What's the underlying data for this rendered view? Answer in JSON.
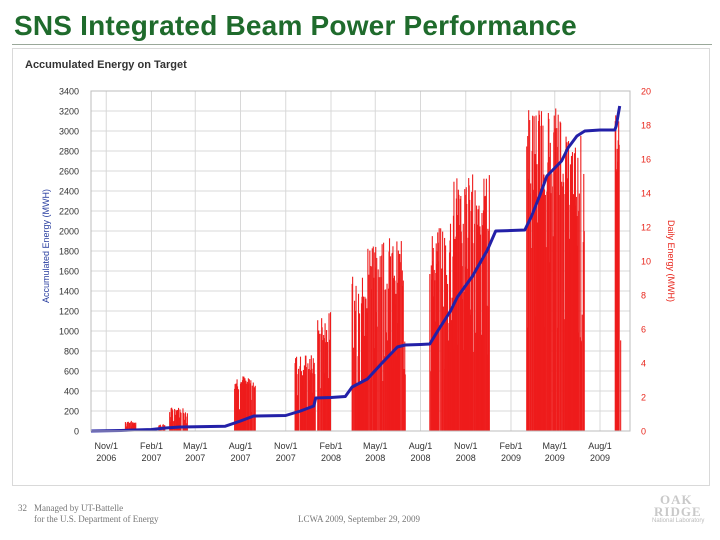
{
  "slide": {
    "title": "SNS Integrated Beam Power Performance",
    "footer_number": "32",
    "footer_line1": "Managed by UT-Battelle",
    "footer_line2": "for the U.S. Department of Energy",
    "footer_center": "LCWA 2009, September 29, 2009",
    "logo_line1": "OAK",
    "logo_line2": "RIDGE",
    "logo_line3": "National Laboratory"
  },
  "colors": {
    "title": "#1f6b2c",
    "left_axis": "#2a3fa0",
    "right_axis": "#e8261c",
    "cumulative_line": "#2320a8",
    "daily_bars": "#ee1c1c",
    "grid": "#d8d8d8"
  },
  "chart_data": {
    "type": "bar",
    "title": "Accumulated Energy on Target",
    "ylabel": "Accumulated Energy (MWH)",
    "y2label": "Daily Energy (MWH)",
    "ylim": [
      0,
      3400
    ],
    "y2lim": [
      0,
      20
    ],
    "yticks": [
      0,
      200,
      400,
      600,
      800,
      1000,
      1200,
      1400,
      1600,
      1800,
      2000,
      2200,
      2400,
      2600,
      2800,
      3000,
      3200,
      3400
    ],
    "y2ticks": [
      0,
      2,
      4,
      6,
      8,
      10,
      12,
      14,
      16,
      18,
      20
    ],
    "grid": true,
    "xaxis": {
      "start": "2006-10-01",
      "end": "2009-10-01",
      "ticks": [
        {
          "date": "2006-11-01",
          "label": "Nov/1",
          "year": "2006"
        },
        {
          "date": "2007-02-01",
          "label": "Feb/1",
          "year": "2007"
        },
        {
          "date": "2007-05-01",
          "label": "May/1",
          "year": "2007"
        },
        {
          "date": "2007-08-01",
          "label": "Aug/1",
          "year": "2007"
        },
        {
          "date": "2007-11-01",
          "label": "Nov/1",
          "year": "2007"
        },
        {
          "date": "2008-02-01",
          "label": "Feb/1",
          "year": "2008"
        },
        {
          "date": "2008-05-01",
          "label": "May/1",
          "year": "2008"
        },
        {
          "date": "2008-08-01",
          "label": "Aug/1",
          "year": "2008"
        },
        {
          "date": "2008-11-01",
          "label": "Nov/1",
          "year": "2008"
        },
        {
          "date": "2009-02-01",
          "label": "Feb/1",
          "year": "2009"
        },
        {
          "date": "2009-05-01",
          "label": "May/1",
          "year": "2009"
        },
        {
          "date": "2009-08-01",
          "label": "Aug/1",
          "year": "2009"
        }
      ]
    },
    "cumulative_series": {
      "axis": "left",
      "points": [
        [
          "2006-10-01",
          0
        ],
        [
          "2006-12-01",
          5
        ],
        [
          "2006-12-28",
          10
        ],
        [
          "2007-02-01",
          15
        ],
        [
          "2007-03-01",
          30
        ],
        [
          "2007-04-01",
          40
        ],
        [
          "2007-06-01",
          45
        ],
        [
          "2007-07-01",
          48
        ],
        [
          "2007-08-01",
          100
        ],
        [
          "2007-08-28",
          150
        ],
        [
          "2007-09-01",
          150
        ],
        [
          "2007-11-01",
          155
        ],
        [
          "2007-12-01",
          200
        ],
        [
          "2007-12-28",
          250
        ],
        [
          "2008-01-01",
          330
        ],
        [
          "2008-02-01",
          335
        ],
        [
          "2008-03-01",
          345
        ],
        [
          "2008-03-15",
          440
        ],
        [
          "2008-04-15",
          520
        ],
        [
          "2008-05-15",
          680
        ],
        [
          "2008-06-15",
          840
        ],
        [
          "2008-07-01",
          860
        ],
        [
          "2008-08-01",
          865
        ],
        [
          "2008-08-20",
          870
        ],
        [
          "2008-09-05",
          1000
        ],
        [
          "2008-10-01",
          1200
        ],
        [
          "2008-10-15",
          1340
        ],
        [
          "2008-11-15",
          1550
        ],
        [
          "2008-12-15",
          1810
        ],
        [
          "2009-01-01",
          2000
        ],
        [
          "2009-02-01",
          2005
        ],
        [
          "2009-03-01",
          2010
        ],
        [
          "2009-03-15",
          2150
        ],
        [
          "2009-04-01",
          2360
        ],
        [
          "2009-04-15",
          2550
        ],
        [
          "2009-05-15",
          2700
        ],
        [
          "2009-05-28",
          2830
        ],
        [
          "2009-06-15",
          2950
        ],
        [
          "2009-07-01",
          3000
        ],
        [
          "2009-08-01",
          3010
        ],
        [
          "2009-08-31",
          3010
        ],
        [
          "2009-09-03",
          3050
        ],
        [
          "2009-09-10",
          3250
        ]
      ]
    },
    "daily_energy_runs": {
      "axis": "right",
      "runs": [
        {
          "start": "2006-12-10",
          "end": "2006-12-31",
          "max": 0.6
        },
        {
          "start": "2007-02-15",
          "end": "2007-02-28",
          "max": 0.4
        },
        {
          "start": "2007-03-10",
          "end": "2007-04-15",
          "max": 1.4
        },
        {
          "start": "2007-07-20",
          "end": "2007-08-31",
          "max": 3.3
        },
        {
          "start": "2007-11-20",
          "end": "2007-12-31",
          "max": 4.5
        },
        {
          "start": "2008-01-05",
          "end": "2008-01-31",
          "max": 7.0
        },
        {
          "start": "2008-03-15",
          "end": "2008-04-15",
          "max": 9.3
        },
        {
          "start": "2008-04-16",
          "end": "2008-05-31",
          "max": 11.5
        },
        {
          "start": "2008-06-01",
          "end": "2008-07-01",
          "max": 11.2
        },
        {
          "start": "2008-08-20",
          "end": "2008-09-30",
          "max": 12.0
        },
        {
          "start": "2008-10-01",
          "end": "2008-12-20",
          "max": 15.2
        },
        {
          "start": "2009-03-05",
          "end": "2009-05-20",
          "max": 19.2
        },
        {
          "start": "2009-05-21",
          "end": "2009-06-30",
          "max": 17.5
        },
        {
          "start": "2009-09-01",
          "end": "2009-09-12",
          "max": 19.5
        }
      ]
    }
  }
}
